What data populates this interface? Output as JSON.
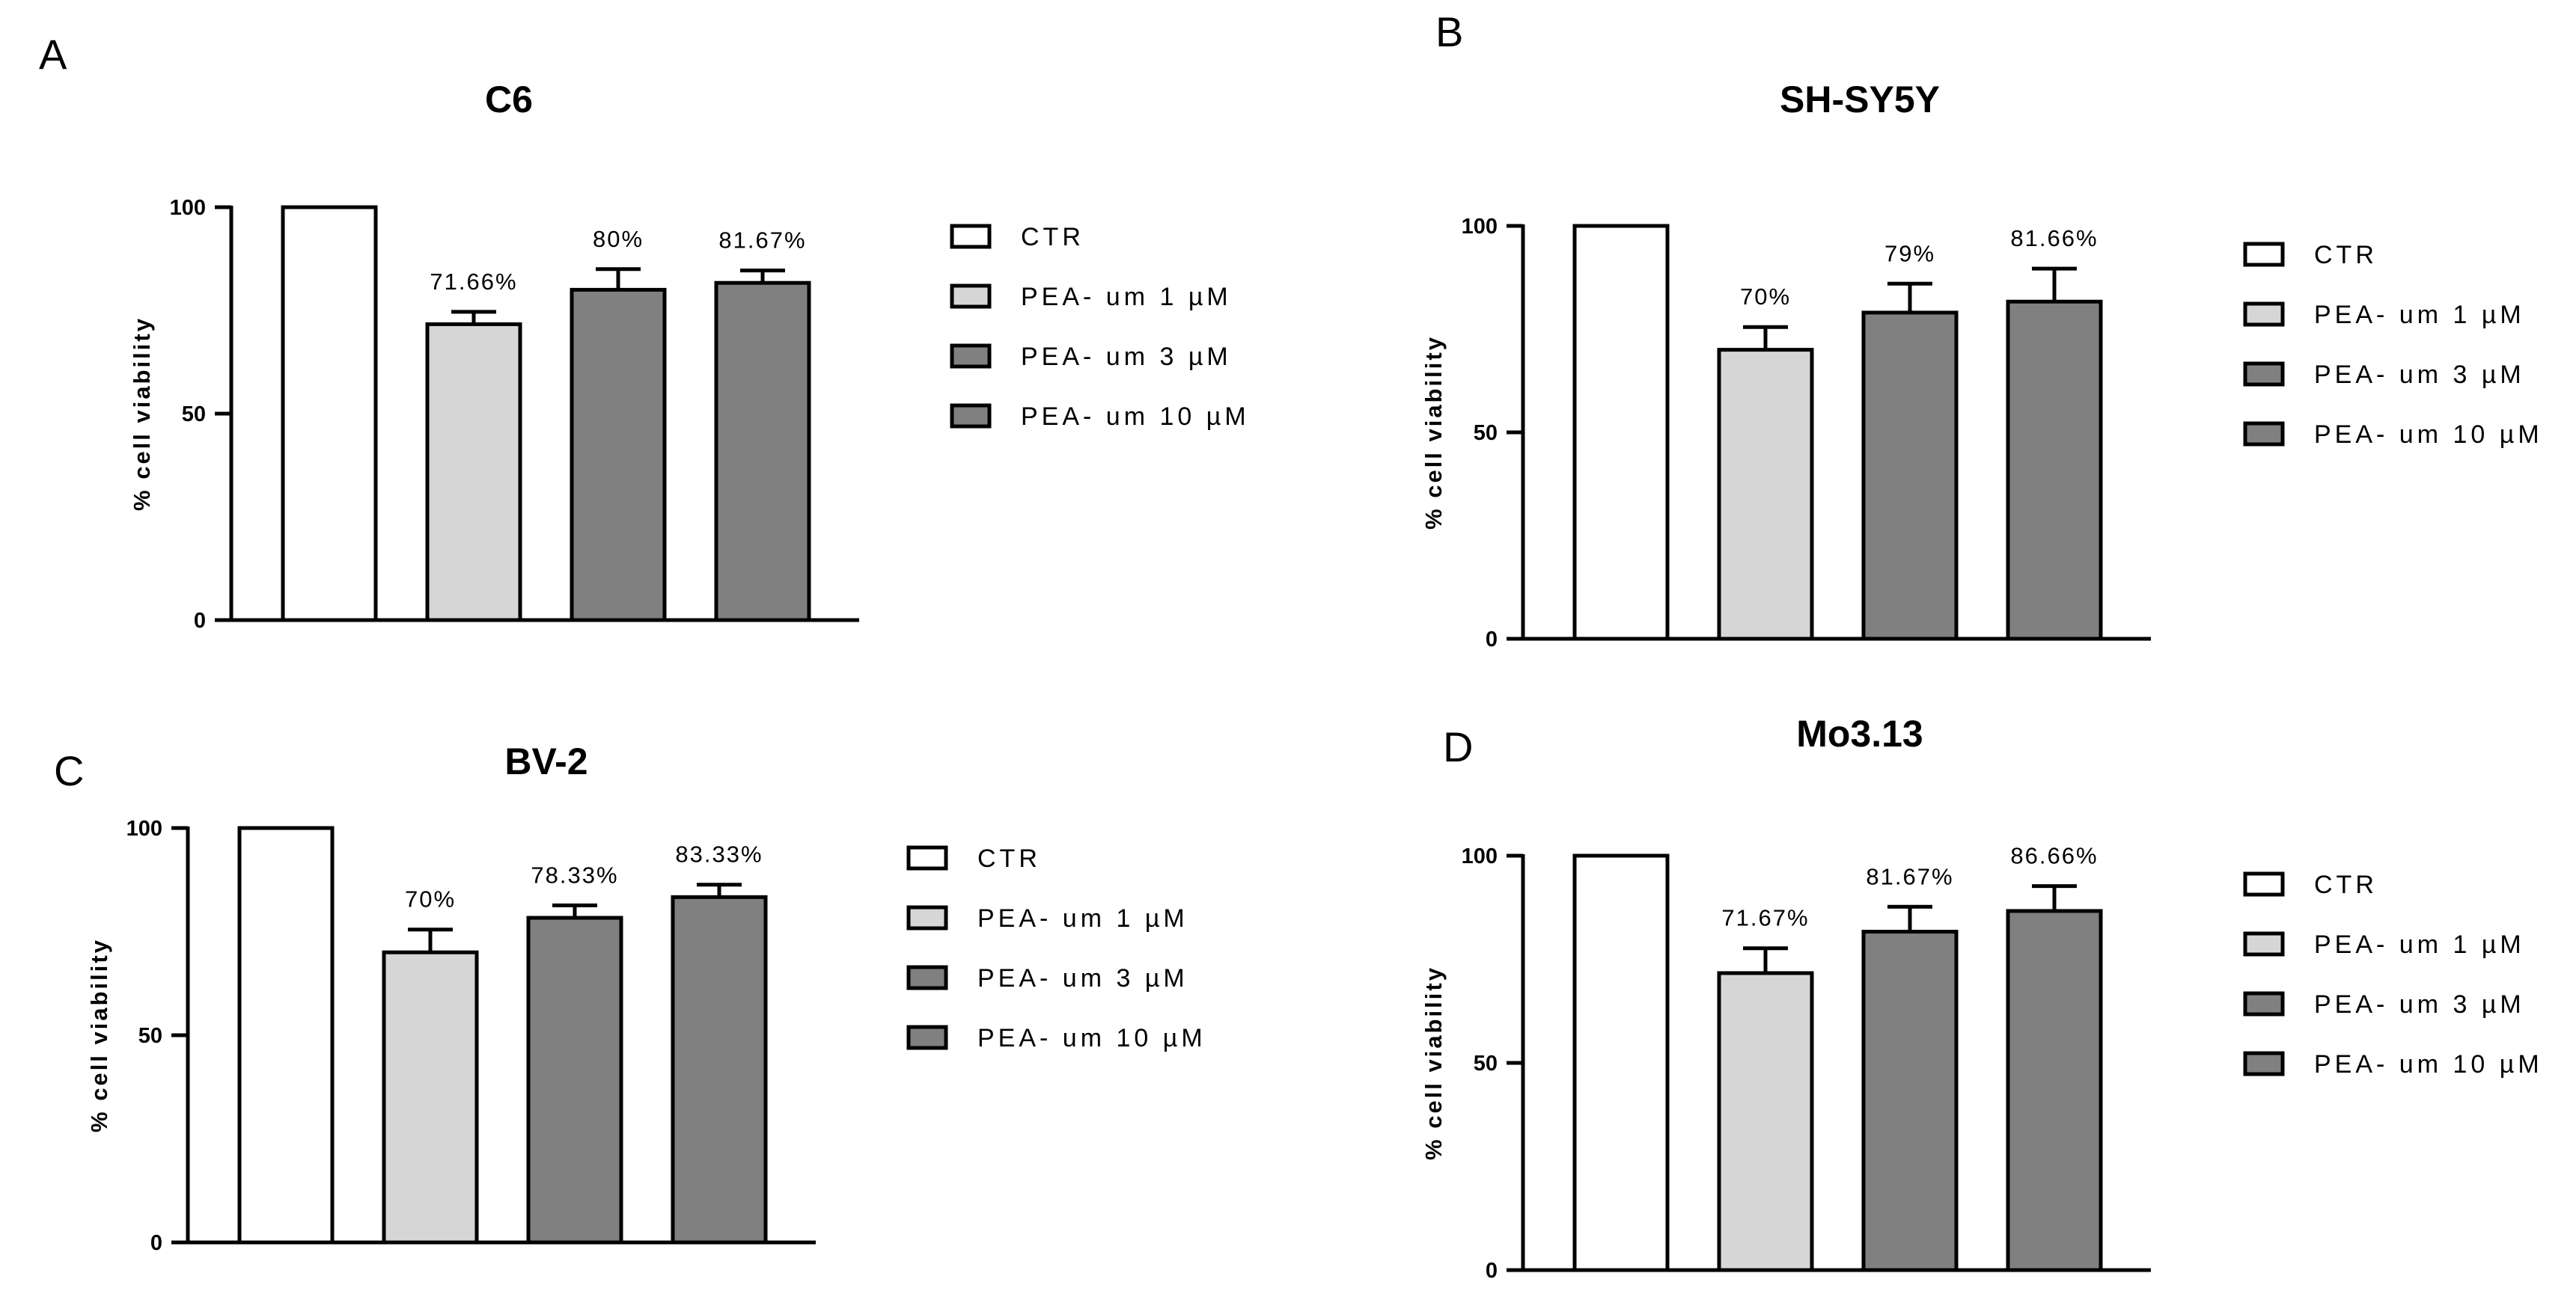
{
  "chart_data": [
    {
      "panel": "A",
      "type": "bar",
      "title": "C6",
      "xlabel": "",
      "ylabel": "% cell viability",
      "ylim": [
        0,
        100
      ],
      "yticks": [
        "0",
        "50",
        "100"
      ],
      "categories": [
        "CTR",
        "PEA- um 1 µM",
        "PEA- um 3 µM",
        "PEA- um  10 µM"
      ],
      "values": [
        100,
        71.66,
        80,
        81.67
      ],
      "errors": [
        0,
        3,
        5,
        3
      ],
      "data_labels": [
        "",
        "71.66%",
        "80%",
        "81.67%"
      ]
    },
    {
      "panel": "B",
      "type": "bar",
      "title": "SH-SY5Y",
      "xlabel": "",
      "ylabel": "% cell viability",
      "ylim": [
        0,
        100
      ],
      "yticks": [
        "0",
        "50",
        "100"
      ],
      "categories": [
        "CTR",
        "PEA- um 1 µM",
        "PEA- um 3 µM",
        "PEA- um  10 µM"
      ],
      "values": [
        100,
        70,
        79,
        81.66
      ],
      "errors": [
        0,
        5.5,
        7,
        8
      ],
      "data_labels": [
        "",
        "70%",
        "79%",
        "81.66%"
      ]
    },
    {
      "panel": "C",
      "type": "bar",
      "title": "BV-2",
      "xlabel": "",
      "ylabel": "% cell viability",
      "ylim": [
        0,
        100
      ],
      "yticks": [
        "0",
        "50",
        "100"
      ],
      "categories": [
        "CTR",
        "PEA- um 1 µM",
        "PEA- um 3 µM",
        "PEA- um  10 µM"
      ],
      "values": [
        100,
        70,
        78.33,
        83.33
      ],
      "errors": [
        0,
        5.5,
        3,
        3
      ],
      "data_labels": [
        "",
        "70%",
        "78.33%",
        "83.33%"
      ]
    },
    {
      "panel": "D",
      "type": "bar",
      "title": "Mo3.13",
      "xlabel": "",
      "ylabel": "% cell viability",
      "ylim": [
        0,
        100
      ],
      "yticks": [
        "0",
        "50",
        "100"
      ],
      "categories": [
        "CTR",
        "PEA- um 1 µM",
        "PEA- um 3 µM",
        "PEA- um  10 µM"
      ],
      "values": [
        100,
        71.67,
        81.67,
        86.66
      ],
      "errors": [
        0,
        6,
        6,
        6
      ],
      "data_labels": [
        "",
        "71.67%",
        "81.67%",
        "86.66%"
      ]
    }
  ],
  "colors": {
    "bar_fills": [
      "#ffffff",
      "#d6d6d6",
      "#808080",
      "#808080"
    ],
    "stroke": "#000000"
  }
}
